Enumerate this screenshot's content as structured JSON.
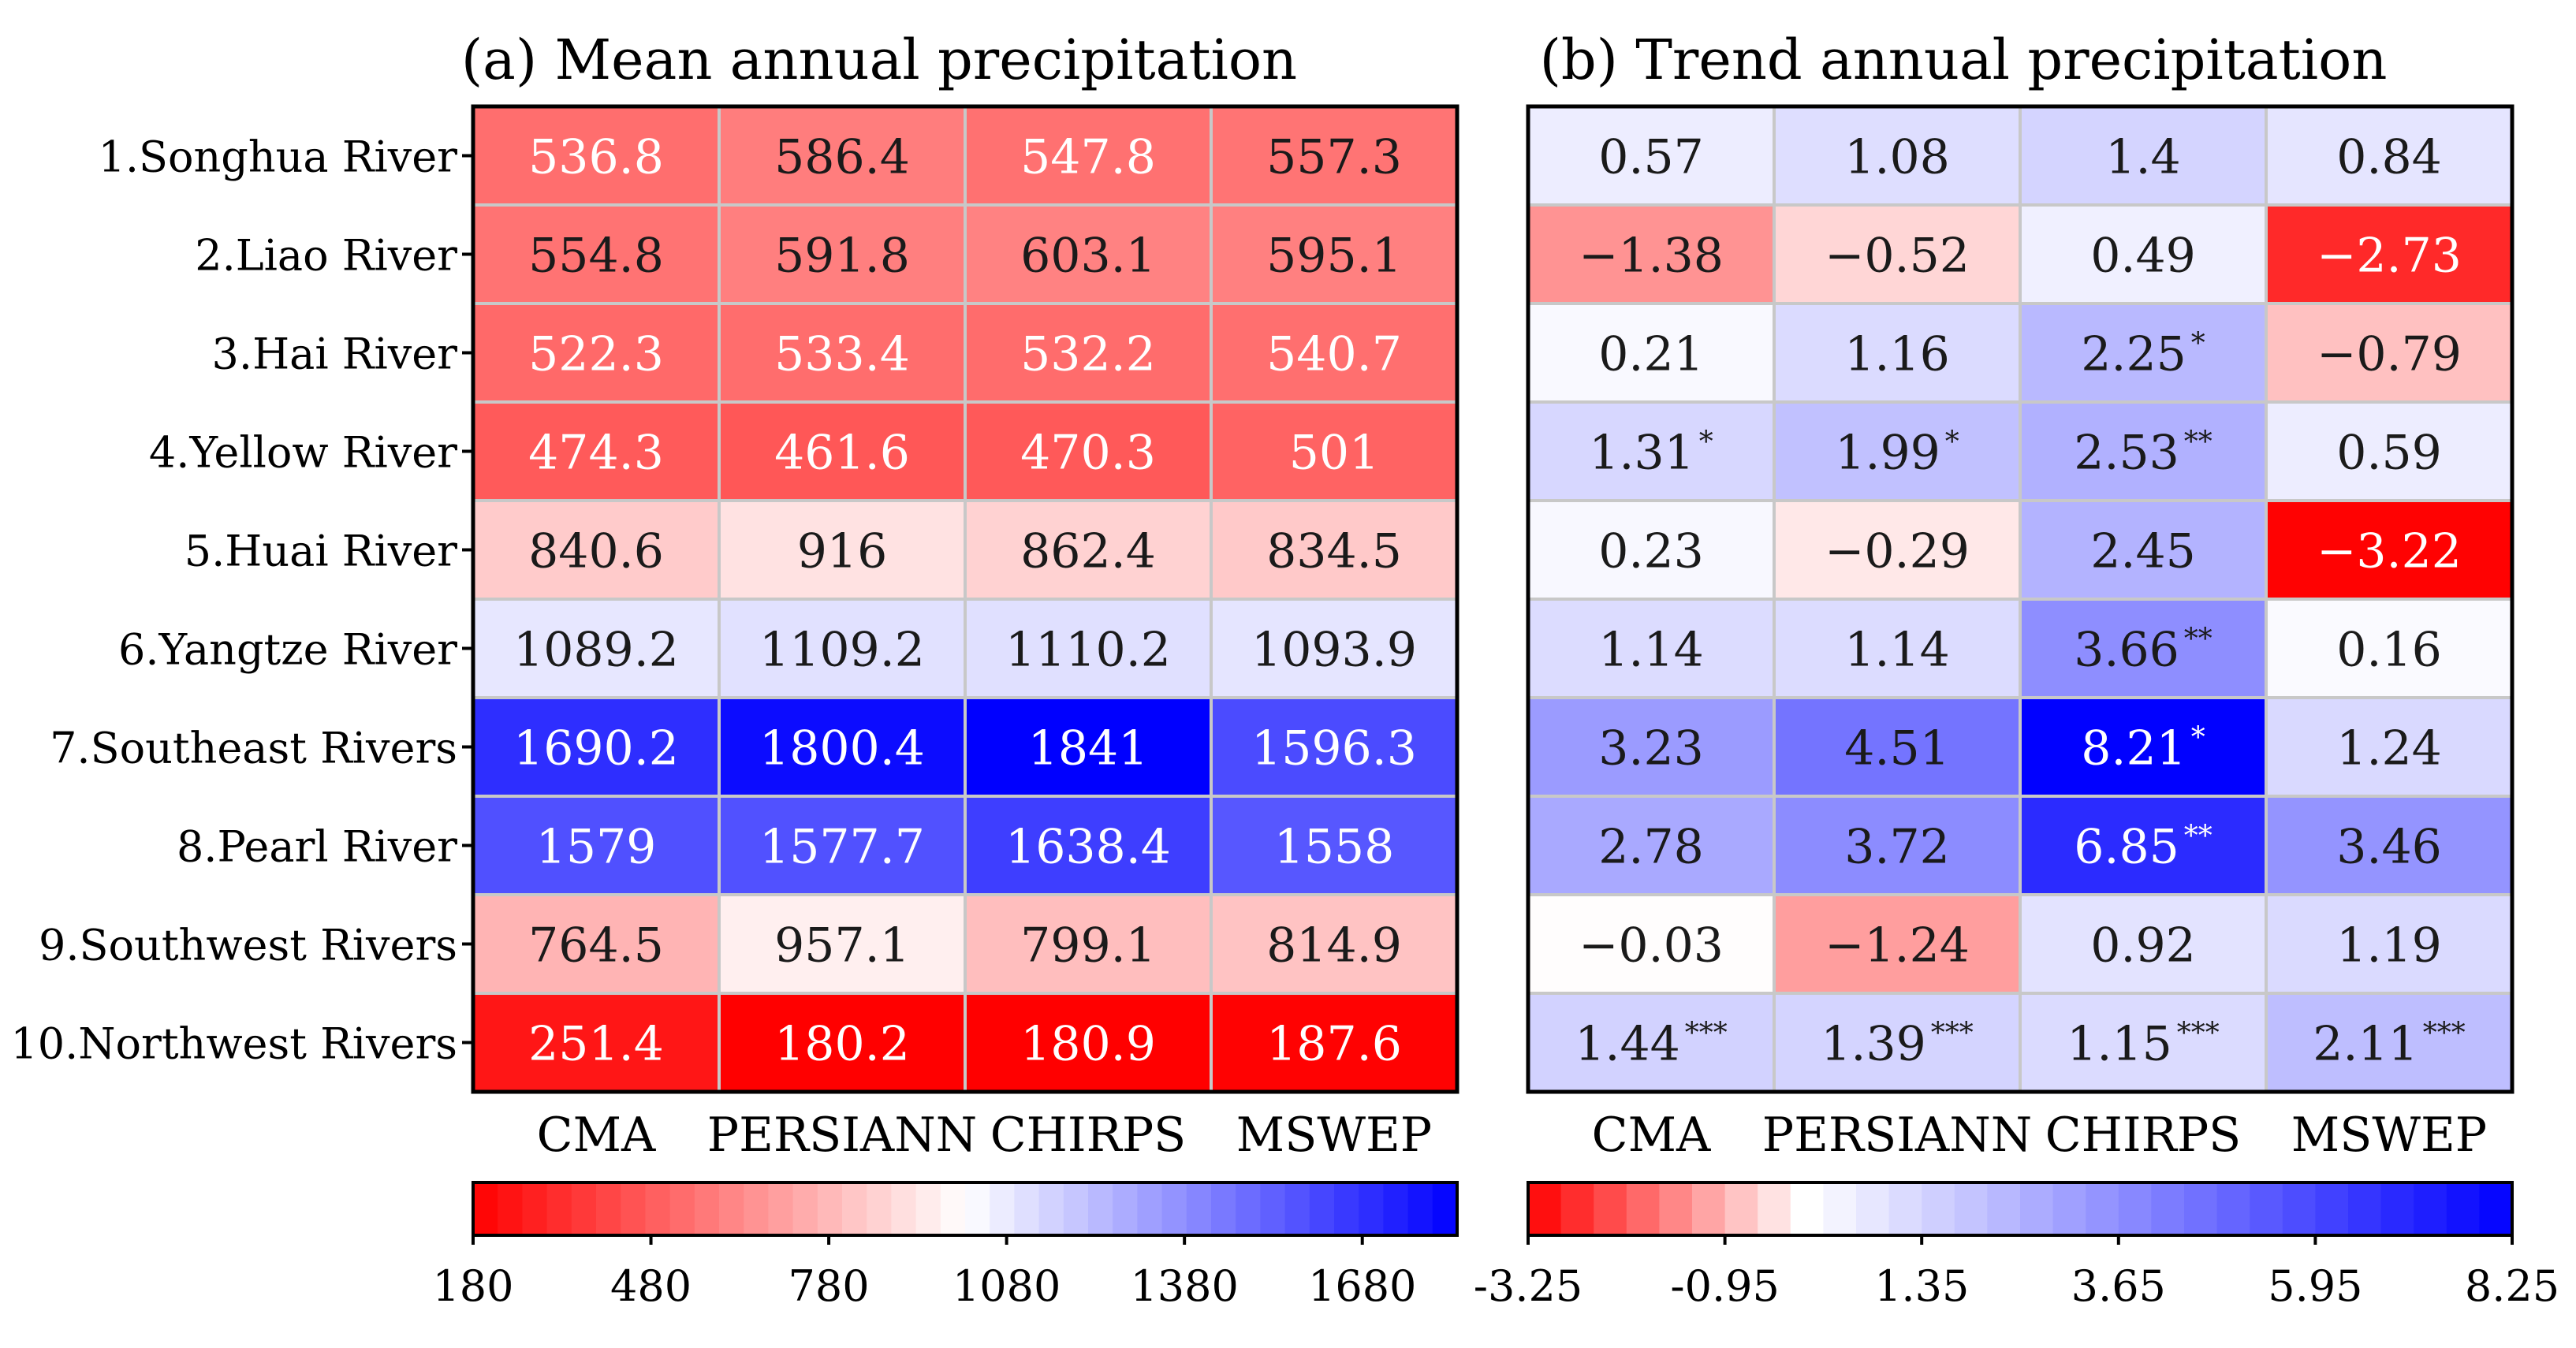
{
  "chart_data": [
    {
      "type": "heatmap",
      "title": "(a) Mean annual precipitation",
      "rows": [
        "1.Songhua River",
        "2.Liao River",
        "3.Hai River",
        "4.Yellow River",
        "5.Huai River",
        "6.Yangtze River",
        "7.Southeast Rivers",
        "8.Pearl River",
        "9.Southwest Rivers",
        "10.Northwest Rivers"
      ],
      "columns": [
        "CMA",
        "PERSIANN",
        "CHIRPS",
        "MSWEP"
      ],
      "values": [
        [
          536.8,
          586.4,
          547.8,
          557.3
        ],
        [
          554.8,
          591.8,
          603.1,
          595.1
        ],
        [
          522.3,
          533.4,
          532.2,
          540.7
        ],
        [
          474.3,
          461.6,
          470.3,
          501
        ],
        [
          840.6,
          916,
          862.4,
          834.5
        ],
        [
          1089.2,
          1109.2,
          1110.2,
          1093.9
        ],
        [
          1690.2,
          1800.4,
          1841,
          1596.3
        ],
        [
          1579,
          1577.7,
          1638.4,
          1558
        ],
        [
          764.5,
          957.1,
          799.1,
          814.9
        ],
        [
          251.4,
          180.2,
          180.9,
          187.6
        ]
      ],
      "labels": [
        [
          "536.8",
          "586.4",
          "547.8",
          "557.3"
        ],
        [
          "554.8",
          "591.8",
          "603.1",
          "595.1"
        ],
        [
          "522.3",
          "533.4",
          "532.2",
          "540.7"
        ],
        [
          "474.3",
          "461.6",
          "470.3",
          "501"
        ],
        [
          "840.6",
          "916",
          "862.4",
          "834.5"
        ],
        [
          "1089.2",
          "1109.2",
          "1110.2",
          "1093.9"
        ],
        [
          "1690.2",
          "1800.4",
          "1841",
          "1596.3"
        ],
        [
          "1579",
          "1577.7",
          "1638.4",
          "1558"
        ],
        [
          "764.5",
          "957.1",
          "799.1",
          "814.9"
        ],
        [
          "251.4",
          "180.2",
          "180.9",
          "187.6"
        ]
      ],
      "colorbar": {
        "min": 180,
        "max": 1840,
        "steps": 40,
        "ticks": [
          180,
          480,
          780,
          1080,
          1380,
          1680
        ],
        "tick_labels": [
          "180",
          "480",
          "780",
          "1080",
          "1380",
          "1680"
        ],
        "low_color": "#ff0000",
        "mid_color": "#ffffff",
        "high_color": "#0000ff"
      },
      "show_row_labels": true
    },
    {
      "type": "heatmap",
      "title": "(b) Trend annual precipitation",
      "rows": [
        "1.Songhua River",
        "2.Liao River",
        "3.Hai River",
        "4.Yellow River",
        "5.Huai River",
        "6.Yangtze River",
        "7.Southeast Rivers",
        "8.Pearl River",
        "9.Southwest Rivers",
        "10.Northwest Rivers"
      ],
      "columns": [
        "CMA",
        "PERSIANN",
        "CHIRPS",
        "MSWEP"
      ],
      "values": [
        [
          0.57,
          1.08,
          1.4,
          0.84
        ],
        [
          -1.38,
          -0.52,
          0.49,
          -2.73
        ],
        [
          0.21,
          1.16,
          2.25,
          -0.79
        ],
        [
          1.31,
          1.99,
          2.53,
          0.59
        ],
        [
          0.23,
          -0.29,
          2.45,
          -3.22
        ],
        [
          1.14,
          1.14,
          3.66,
          0.16
        ],
        [
          3.23,
          4.51,
          8.21,
          1.24
        ],
        [
          2.78,
          3.72,
          6.85,
          3.46
        ],
        [
          -0.03,
          -1.24,
          0.92,
          1.19
        ],
        [
          1.44,
          1.39,
          1.15,
          2.11
        ]
      ],
      "labels": [
        [
          "0.57",
          "1.08",
          "1.4",
          "0.84"
        ],
        [
          "−1.38",
          "−0.52",
          "0.49",
          "−2.73"
        ],
        [
          "0.21",
          "1.16",
          "2.25",
          "−0.79"
        ],
        [
          "1.31",
          "1.99",
          "2.53",
          "0.59"
        ],
        [
          "0.23",
          "−0.29",
          "2.45",
          "−3.22"
        ],
        [
          "1.14",
          "1.14",
          "3.66",
          "0.16"
        ],
        [
          "3.23",
          "4.51",
          "8.21",
          "1.24"
        ],
        [
          "2.78",
          "3.72",
          "6.85",
          "3.46"
        ],
        [
          "−0.03",
          "−1.24",
          "0.92",
          "1.19"
        ],
        [
          "1.44",
          "1.39",
          "1.15",
          "2.11"
        ]
      ],
      "significance": [
        [
          "",
          "",
          "",
          ""
        ],
        [
          "",
          "",
          "",
          ""
        ],
        [
          "",
          "",
          "*",
          ""
        ],
        [
          "*",
          "*",
          "**",
          ""
        ],
        [
          "",
          "",
          "",
          ""
        ],
        [
          "",
          "",
          "**",
          ""
        ],
        [
          "",
          "",
          "*",
          ""
        ],
        [
          "",
          "",
          "**",
          ""
        ],
        [
          "",
          "",
          "",
          ""
        ],
        [
          "***",
          "***",
          "***",
          "***"
        ]
      ],
      "colorbar": {
        "min": -3.25,
        "max": 8.25,
        "center": 0,
        "steps": 30,
        "ticks": [
          -3.25,
          -0.95,
          1.35,
          3.65,
          5.95,
          8.25
        ],
        "tick_labels": [
          "-3.25",
          "-0.95",
          "1.35",
          "3.65",
          "5.95",
          "8.25"
        ],
        "low_color": "#ff0000",
        "mid_color": "#ffffff",
        "high_color": "#0000ff"
      },
      "show_row_labels": false
    }
  ]
}
